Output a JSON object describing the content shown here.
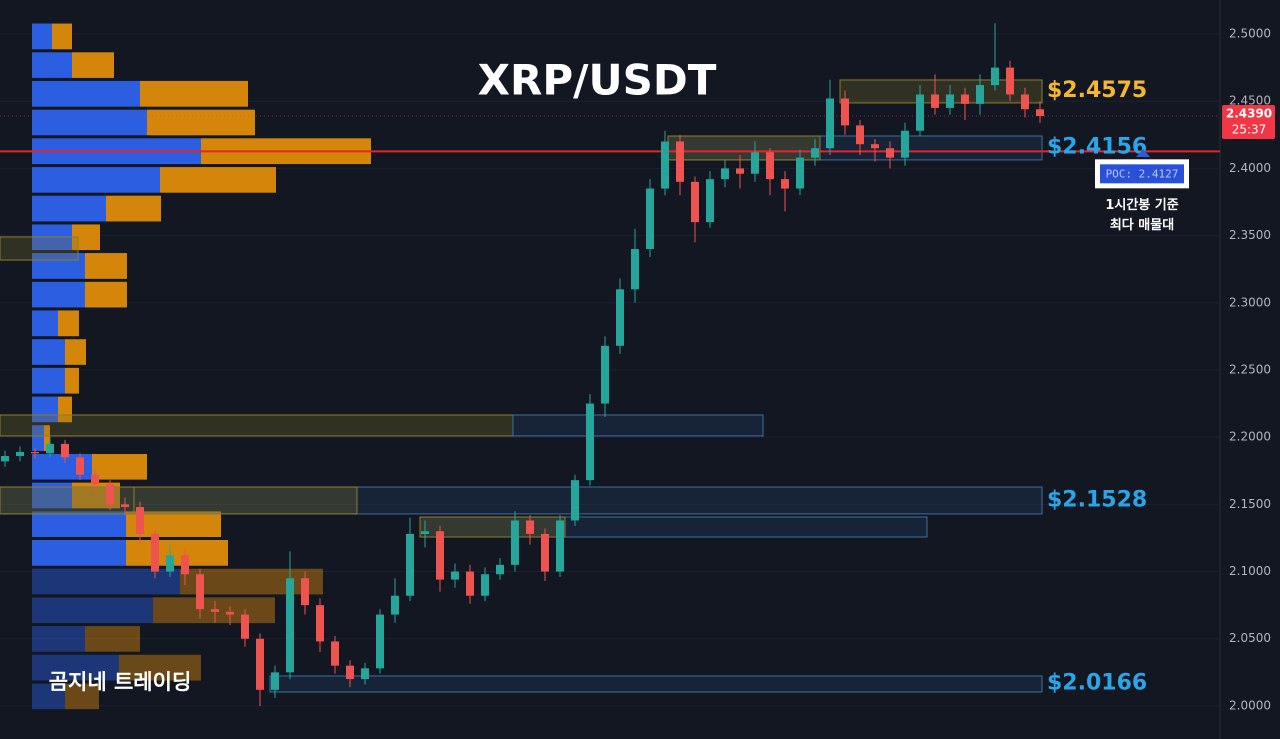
{
  "chart_data": {
    "type": "candlestick",
    "title": "XRP/USDT",
    "watermark": "곰지네 트레이딩",
    "up_color": "#26a69a",
    "down_color": "#ef5350",
    "ylim": [
      1.9754,
      2.5253
    ],
    "yticks": [
      {
        "value": 2.0,
        "label": "2.0000"
      },
      {
        "value": 2.05,
        "label": "2.0500"
      },
      {
        "value": 2.1,
        "label": "2.1000"
      },
      {
        "value": 2.15,
        "label": "2.1500"
      },
      {
        "value": 2.2,
        "label": "2.2000"
      },
      {
        "value": 2.25,
        "label": "2.2500"
      },
      {
        "value": 2.3,
        "label": "2.3000"
      },
      {
        "value": 2.35,
        "label": "2.3500"
      },
      {
        "value": 2.4,
        "label": "2.4000"
      },
      {
        "value": 2.45,
        "label": "2.4500"
      },
      {
        "value": 2.5,
        "label": "2.5000"
      }
    ],
    "grid": true,
    "open": [
      2.182,
      2.186,
      2.189,
      2.188,
      2.195,
      2.185,
      2.172,
      2.165,
      2.15,
      2.148,
      2.128,
      2.1,
      2.112,
      2.098,
      2.072,
      2.07,
      2.068,
      2.05,
      2.012,
      2.025,
      2.095,
      2.075,
      2.048,
      2.03,
      2.02,
      2.028,
      2.068,
      2.082,
      2.128,
      2.13,
      2.094,
      2.1,
      2.082,
      2.098,
      2.105,
      2.138,
      2.128,
      2.1,
      2.138,
      2.168,
      2.225,
      2.268,
      2.31,
      2.34,
      2.385,
      2.42,
      2.39,
      2.36,
      2.392,
      2.4,
      2.396,
      2.412,
      2.392,
      2.385,
      2.408,
      2.415,
      2.452,
      2.432,
      2.418,
      2.415,
      2.408,
      2.428,
      2.455,
      2.445,
      2.455,
      2.448,
      2.462,
      2.475,
      2.455,
      2.444
    ],
    "high": [
      2.19,
      2.193,
      2.192,
      2.2,
      2.198,
      2.188,
      2.176,
      2.168,
      2.155,
      2.152,
      2.131,
      2.12,
      2.118,
      2.102,
      2.078,
      2.074,
      2.072,
      2.054,
      2.03,
      2.115,
      2.1,
      2.08,
      2.052,
      2.034,
      2.032,
      2.072,
      2.095,
      2.14,
      2.138,
      2.134,
      2.106,
      2.105,
      2.103,
      2.11,
      2.145,
      2.142,
      2.132,
      2.142,
      2.172,
      2.232,
      2.275,
      2.318,
      2.355,
      2.392,
      2.428,
      2.425,
      2.394,
      2.398,
      2.406,
      2.41,
      2.42,
      2.415,
      2.398,
      2.414,
      2.422,
      2.466,
      2.458,
      2.436,
      2.422,
      2.42,
      2.434,
      2.462,
      2.47,
      2.462,
      2.46,
      2.47,
      2.508,
      2.48,
      2.46,
      2.45
    ],
    "low": [
      2.178,
      2.182,
      2.184,
      2.185,
      2.181,
      2.168,
      2.16,
      2.146,
      2.142,
      2.12,
      2.095,
      2.096,
      2.09,
      2.065,
      2.062,
      2.06,
      2.044,
      2.0,
      2.006,
      2.02,
      2.068,
      2.04,
      2.024,
      2.014,
      2.016,
      2.024,
      2.062,
      2.078,
      2.118,
      2.085,
      2.088,
      2.076,
      2.078,
      2.094,
      2.1,
      2.12,
      2.093,
      2.096,
      2.134,
      2.164,
      2.215,
      2.262,
      2.3,
      2.334,
      2.38,
      2.38,
      2.345,
      2.356,
      2.386,
      2.385,
      2.39,
      2.38,
      2.368,
      2.38,
      2.402,
      2.41,
      2.425,
      2.41,
      2.405,
      2.4,
      2.402,
      2.424,
      2.44,
      2.44,
      2.436,
      2.44,
      2.458,
      2.45,
      2.438,
      2.434
    ],
    "close": [
      2.186,
      2.189,
      2.188,
      2.195,
      2.185,
      2.172,
      2.165,
      2.15,
      2.148,
      2.128,
      2.1,
      2.112,
      2.098,
      2.072,
      2.07,
      2.068,
      2.05,
      2.012,
      2.025,
      2.095,
      2.075,
      2.048,
      2.03,
      2.02,
      2.028,
      2.068,
      2.082,
      2.128,
      2.13,
      2.094,
      2.1,
      2.082,
      2.098,
      2.105,
      2.138,
      2.128,
      2.1,
      2.138,
      2.168,
      2.225,
      2.268,
      2.31,
      2.34,
      2.385,
      2.42,
      2.39,
      2.36,
      2.392,
      2.4,
      2.396,
      2.412,
      2.392,
      2.385,
      2.408,
      2.415,
      2.452,
      2.432,
      2.418,
      2.415,
      2.408,
      2.428,
      2.455,
      2.445,
      2.455,
      2.448,
      2.462,
      2.475,
      2.455,
      2.444,
      2.439
    ],
    "profile": {
      "bins": [
        1.9965,
        2.0178,
        2.0392,
        2.0605,
        2.0819,
        2.1032,
        2.1246,
        2.1459,
        2.1673,
        2.1886,
        2.21,
        2.2313,
        2.2527,
        2.274,
        2.2954,
        2.3167,
        2.3381,
        2.3594,
        2.3808,
        2.4021,
        2.4235,
        2.4448,
        2.4662,
        2.4875,
        2.5089
      ],
      "value_area_low": 2.1032,
      "series": [
        {
          "color": "#2b5ee0",
          "values": [
            33,
            87,
            53,
            121,
            148,
            94,
            94,
            40,
            60,
            12,
            26,
            33,
            33,
            26,
            53,
            53,
            40,
            74,
            128,
            169,
            115,
            108,
            40,
            20
          ]
        },
        {
          "color": "#d4860b",
          "values": [
            34,
            82,
            55,
            122,
            143,
            102,
            95,
            48,
            55,
            6,
            14,
            14,
            21,
            21,
            42,
            42,
            28,
            55,
            116,
            170,
            108,
            108,
            42,
            20
          ]
        }
      ]
    },
    "zones": [
      {
        "low": 2.4487,
        "high": 2.4658,
        "price": 2.4575,
        "label": "$2.4575",
        "color": "#f5b731"
      },
      {
        "low": 2.4063,
        "high": 2.4241,
        "price": 2.4156,
        "label": "$2.4156",
        "color": "#2aa6e8"
      },
      {
        "low": 2.2009,
        "high": 2.2165
      },
      {
        "low": 2.1429,
        "high": 2.1629,
        "price": 2.1528,
        "label": "$2.1528",
        "color": "#2aa6e8"
      },
      {
        "low": 2.1257,
        "high": 2.1406
      },
      {
        "low": 2.0104,
        "high": 2.0223,
        "price": 2.0166,
        "label": "$2.0166",
        "color": "#2aa6e8"
      },
      {
        "low": 2.3318,
        "high": 2.349
      }
    ],
    "poc": {
      "value": 2.4127,
      "label": "POC: 2.4127",
      "color": "#e8232a",
      "note": [
        "1시간봉 기준",
        "최다 매물대"
      ]
    },
    "last_price": {
      "value": 2.439,
      "label": "2.4390",
      "countdown": "25:37",
      "color": "#f23645"
    }
  }
}
